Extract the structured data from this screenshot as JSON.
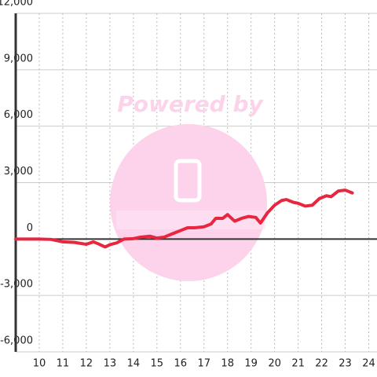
{
  "chart_data": {
    "type": "line",
    "annotation": "Powered by",
    "x": [
      9,
      10,
      10.5,
      11,
      11.5,
      12,
      12.3,
      12.5,
      12.8,
      13,
      13.3,
      13.6,
      14,
      14.3,
      14.7,
      15,
      15.3,
      15.7,
      16,
      16.3,
      16.6,
      17,
      17.3,
      17.5,
      17.8,
      18,
      18.3,
      18.6,
      18.9,
      19.2,
      19.4,
      19.7,
      20,
      20.3,
      20.5,
      20.8,
      21,
      21.3,
      21.6,
      21.9,
      22.2,
      22.4,
      22.7,
      23,
      23.3
    ],
    "values": [
      0,
      0,
      -20,
      -150,
      -180,
      -280,
      -150,
      -250,
      -420,
      -300,
      -200,
      0,
      20,
      100,
      150,
      50,
      100,
      300,
      450,
      600,
      600,
      650,
      800,
      1100,
      1100,
      1300,
      950,
      1100,
      1200,
      1150,
      850,
      1400,
      1800,
      2050,
      2100,
      1950,
      1900,
      1750,
      1800,
      2150,
      2300,
      2250,
      2550,
      2600,
      2450
    ],
    "color": "#e8263f",
    "xlim": [
      9,
      24.35
    ],
    "xticks": [
      10,
      11,
      12,
      13,
      14,
      15,
      16,
      17,
      18,
      19,
      20,
      21,
      22,
      23,
      24
    ],
    "ylim": [
      -6000,
      12000
    ],
    "yticks": [
      {
        "value": -6000,
        "label": "-6,000"
      },
      {
        "value": -3000,
        "label": "-3,000"
      },
      0,
      {
        "value": 3000,
        "label": "3,000"
      },
      {
        "value": 6000,
        "label": "6,000"
      },
      {
        "value": 9000,
        "label": "9,000"
      },
      {
        "value": 12000,
        "label": "12,000"
      }
    ],
    "grid": true
  }
}
